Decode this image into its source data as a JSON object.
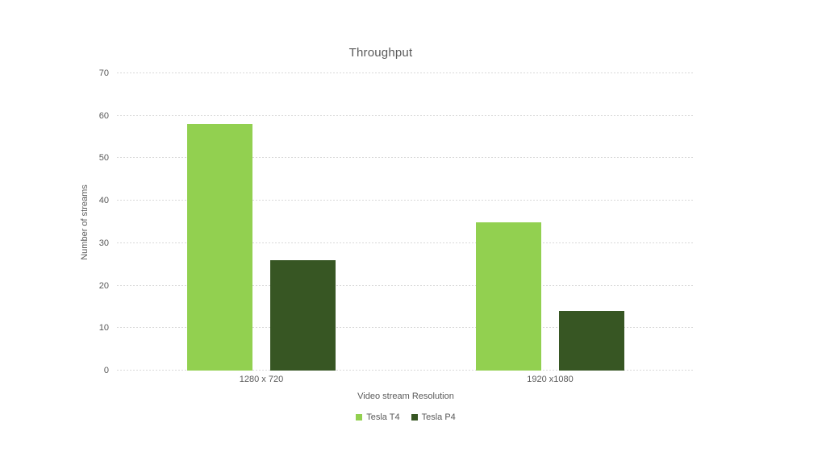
{
  "chart_data": {
    "type": "bar",
    "title": "Throughput",
    "categories": [
      "1280 x 720",
      "1920 x1080"
    ],
    "series": [
      {
        "name": "Tesla T4",
        "values": [
          58,
          35
        ],
        "color": "#92D050"
      },
      {
        "name": "Tesla P4",
        "values": [
          26,
          14
        ],
        "color": "#375623"
      }
    ],
    "xlabel": "Video stream Resolution",
    "ylabel": "Number of streams",
    "ylim": [
      0,
      70
    ],
    "ytick_step": 10,
    "grid": true,
    "legend_position": "bottom",
    "gridline_color": "#d9d9d9",
    "text_color": "#595959",
    "background": "#ffffff"
  }
}
